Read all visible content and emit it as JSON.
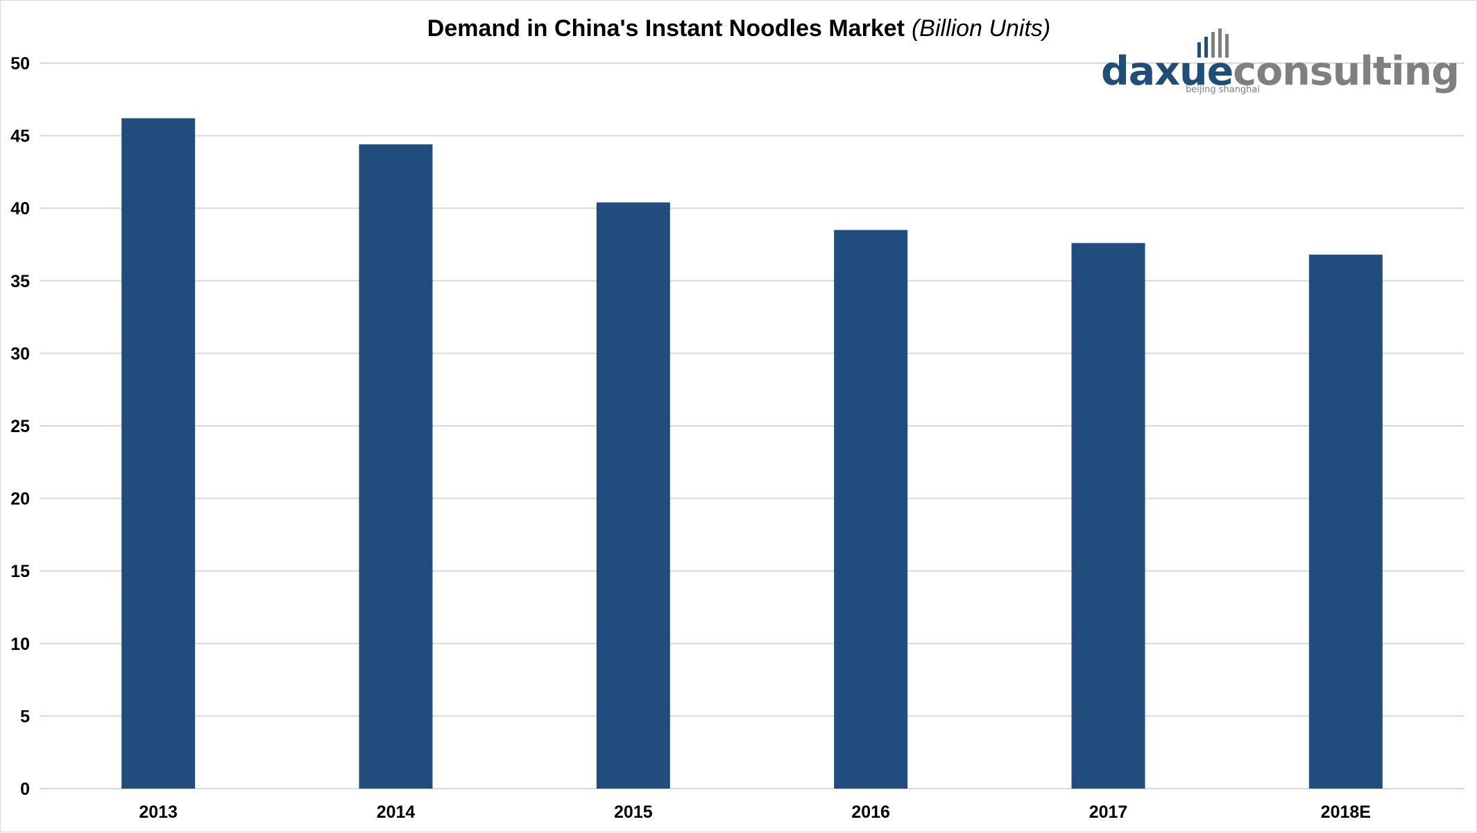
{
  "chart_data": {
    "type": "bar",
    "title": "Demand in China's Instant Noodles Market",
    "subtitle": "(Billion Units)",
    "xlabel": "",
    "ylabel": "",
    "categories": [
      "2013",
      "2014",
      "2015",
      "2016",
      "2017",
      "2018E"
    ],
    "values": [
      46.2,
      44.4,
      40.4,
      38.5,
      37.6,
      36.8
    ],
    "ylim": [
      0,
      50
    ],
    "yticks": [
      0,
      5,
      10,
      15,
      20,
      25,
      30,
      35,
      40,
      45,
      50
    ],
    "grid": true,
    "legend": "none",
    "bar_color": "#214d7e",
    "grid_color": "#d9d9d9"
  },
  "logo": {
    "brand_part1": "daxue",
    "brand_part2": "consulting",
    "tagline": "beijing shanghai",
    "color_primary": "#1f4e79",
    "color_secondary": "#7f7f7f",
    "icon": "bar-chart-icon"
  }
}
